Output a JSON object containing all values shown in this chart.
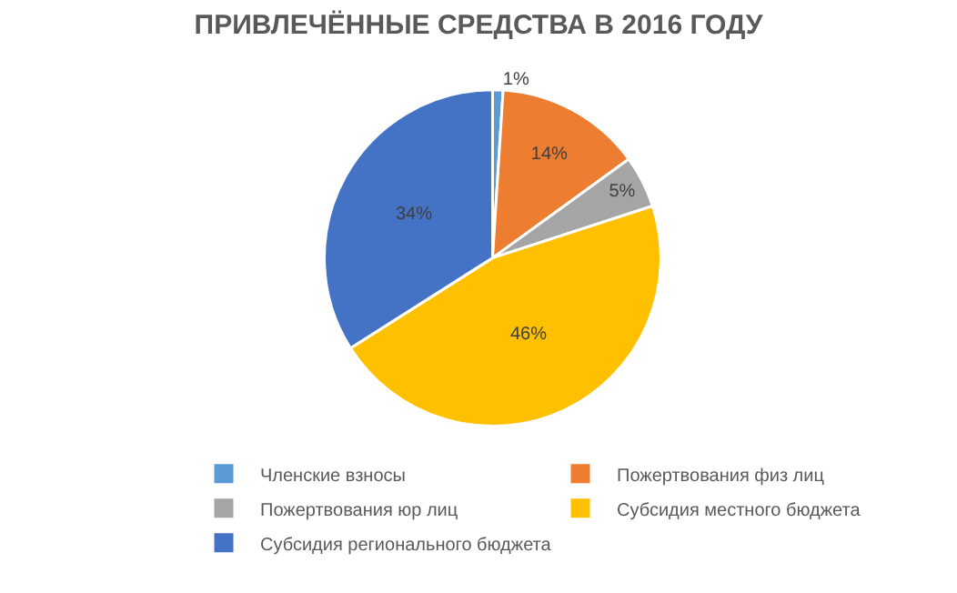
{
  "chart_data": {
    "type": "pie",
    "title": "ПРИВЛЕЧЁННЫЕ СРЕДСТВА В 2016 ГОДУ",
    "categories": [
      "Членские взносы",
      "Пожертвования физ лиц",
      "Пожертвования юр лиц",
      "Субсидия местного бюджета",
      "Субсидия регионального бюджета"
    ],
    "values": [
      1,
      14,
      5,
      46,
      34
    ],
    "value_labels": [
      "1%",
      "14%",
      "5%",
      "46%",
      "34%"
    ],
    "colors": [
      "#5b9bd5",
      "#ed7d31",
      "#a5a5a5",
      "#ffc000",
      "#4472c4"
    ],
    "legend": "bottom"
  }
}
